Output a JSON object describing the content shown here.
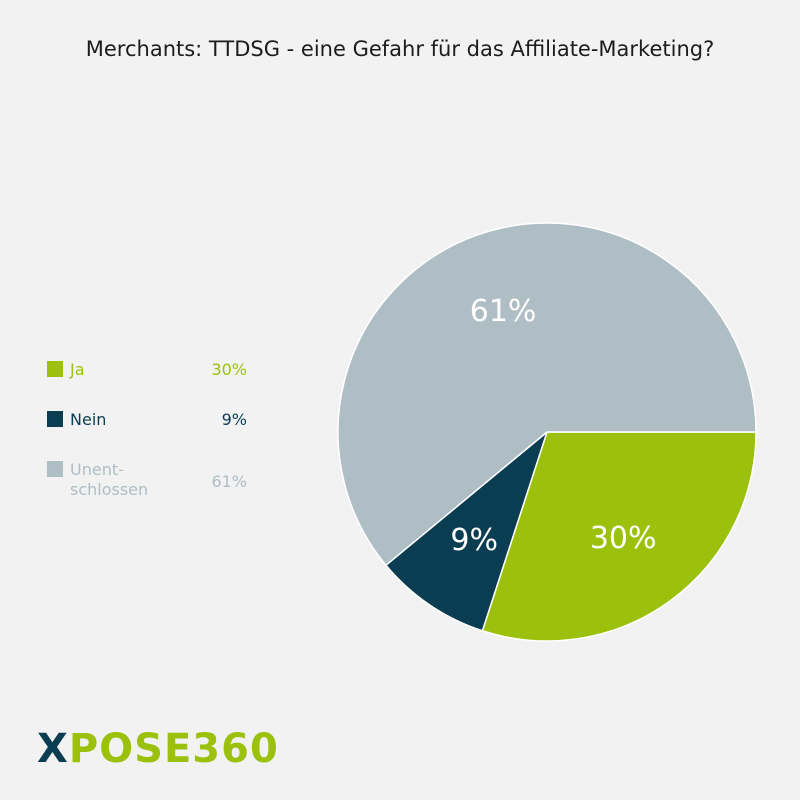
{
  "title": "Merchants: TTDSG - eine Gefahr für das Affiliate-Marketing?",
  "colors": {
    "ja": "#9bc10c",
    "nein": "#0a3d52",
    "unentschlossen": "#aebec4",
    "slice_label": "#ffffff"
  },
  "chart_data": {
    "type": "pie",
    "title": "Merchants: TTDSG - eine Gefahr für das Affiliate-Marketing?",
    "categories": [
      "Ja",
      "Nein",
      "Unent-\nschlossen"
    ],
    "values": [
      30,
      9,
      61
    ],
    "value_labels": [
      "30%",
      "9%",
      "61%"
    ],
    "legend_position": "left"
  },
  "logo": {
    "part1": "X",
    "part2": "POSE360"
  }
}
